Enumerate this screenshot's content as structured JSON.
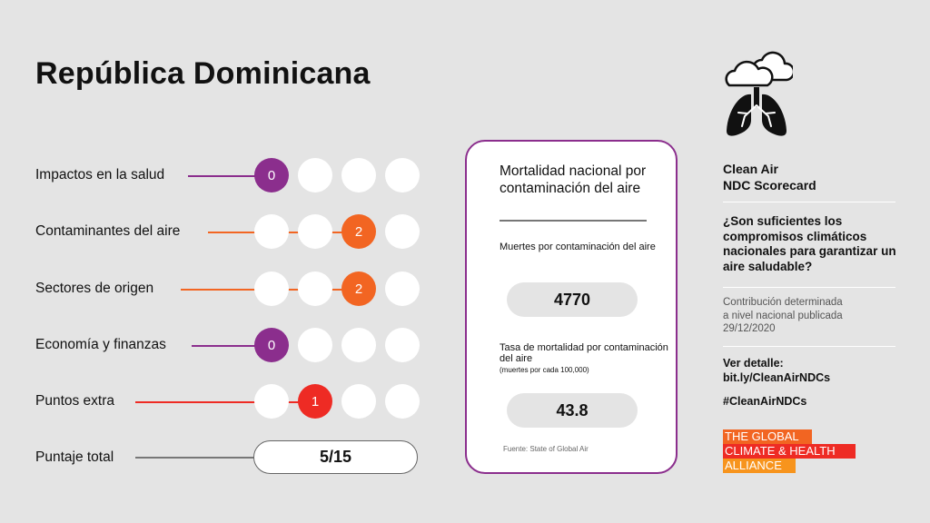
{
  "title": "República Dominicana",
  "rows": [
    {
      "label": "Impactos en la salud",
      "score": "0",
      "color": "#8b2e8d"
    },
    {
      "label": "Contaminantes del aire",
      "score": "2",
      "color": "#f26522"
    },
    {
      "label": "Sectores de origen",
      "score": "2",
      "color": "#f26522"
    },
    {
      "label": "Economía y finanzas",
      "score": "0",
      "color": "#8b2e8d"
    },
    {
      "label": "Puntos extra",
      "score": "1",
      "color": "#ee2b24"
    }
  ],
  "total": {
    "label": "Puntaje total",
    "value": "5/15"
  },
  "card": {
    "title": "Mortalidad nacional por contaminación del aire",
    "deaths_label": "Muertes por contaminación del aire",
    "deaths_value": "4770",
    "rate_label": "Tasa de mortalidad por contaminación del aire",
    "rate_note": "(muertes por cada 100,000)",
    "rate_value": "43.8",
    "source": "Fuente: State of Global Air"
  },
  "scorecard": {
    "title_line1": "Clean Air",
    "title_line2": "NDC Scorecard",
    "question": "¿Son suficientes los compromisos climáticos nacionales para garantizar un aire saludable?",
    "contrib_line1": "Contribución determinada",
    "contrib_line2": "a nivel nacional publicada",
    "contrib_date": "29/12/2020",
    "link_label": "Ver detalle:",
    "link_url": "bit.ly/CleanAirNDCs",
    "hashtag": "#CleanAirNDCs"
  },
  "logo": {
    "line1": "THE GLOBAL",
    "line2": "CLIMATE & HEALTH",
    "line3": "ALLIANCE",
    "colors": [
      "#f26522",
      "#ee2b24",
      "#f7941d"
    ]
  },
  "icon": "clouds-lungs-icon"
}
